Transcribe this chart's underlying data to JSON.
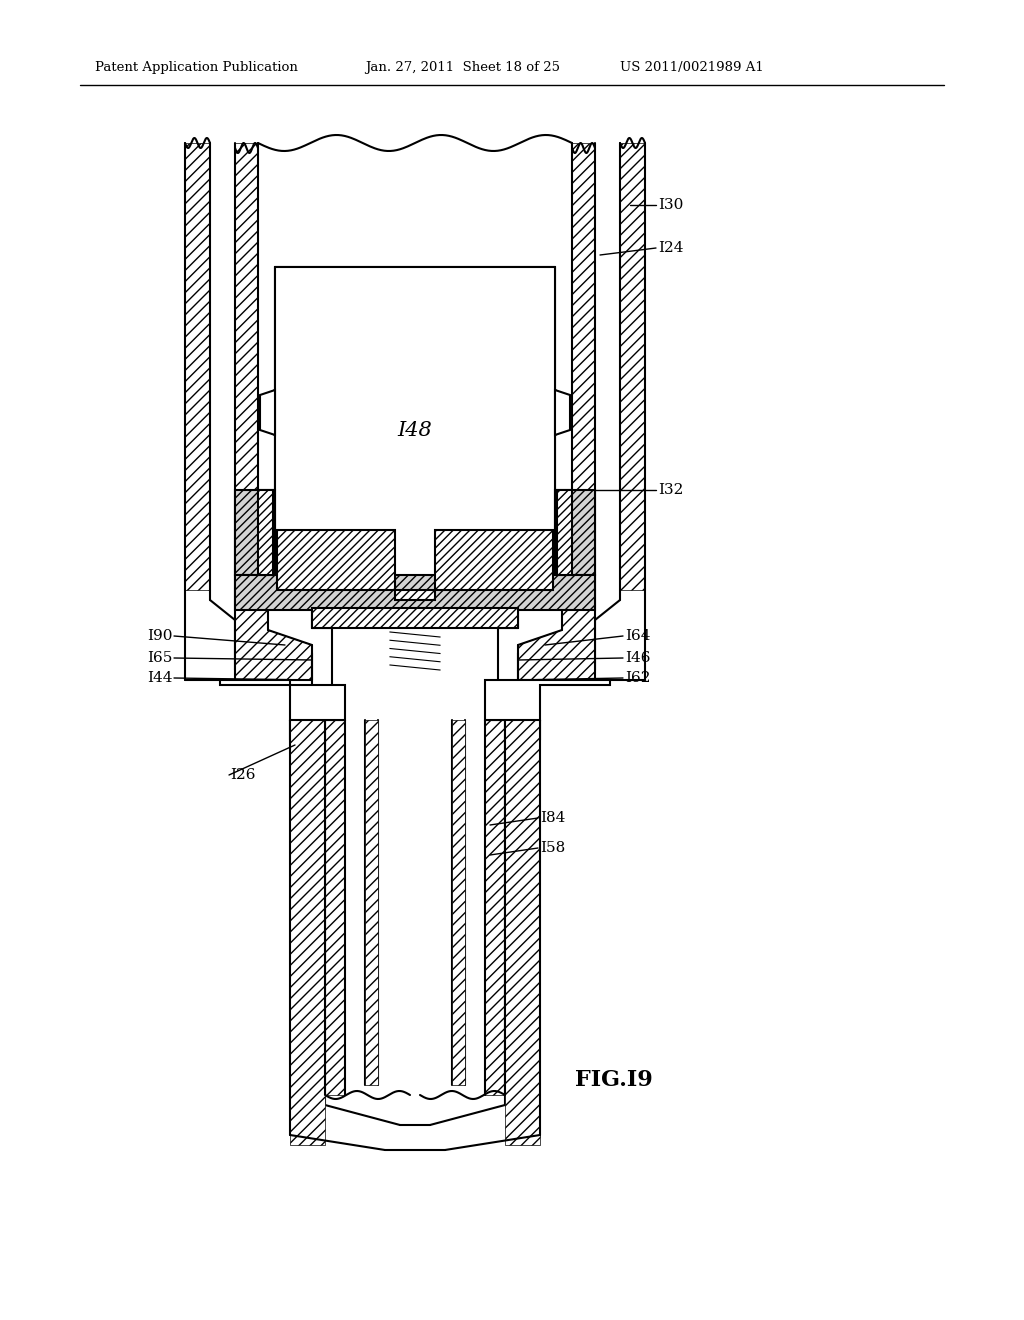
{
  "bg_color": "#ffffff",
  "line_color": "#000000",
  "header_text_left": "Patent Application Publication",
  "header_text_mid": "Jan. 27, 2011  Sheet 18 of 25",
  "header_text_right": "US 2011/0021989 A1",
  "figure_label": "FIG.I9",
  "label_130": "I30",
  "label_124": "I24",
  "label_132": "I32",
  "label_148": "I48",
  "label_190": "I90",
  "label_165": "I65",
  "label_144": "I44",
  "label_126": "I26",
  "label_164": "I64",
  "label_146": "I46",
  "label_162": "I62",
  "label_184": "I84",
  "label_158": "I58"
}
